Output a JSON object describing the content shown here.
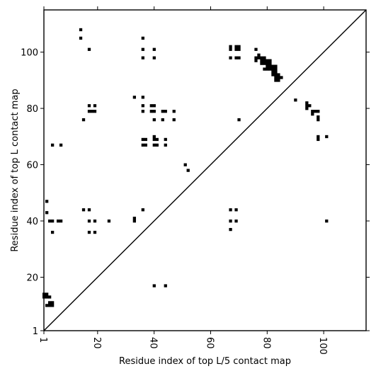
{
  "chart_data": {
    "type": "scatter",
    "title": "",
    "xlabel": "Residue index of top L/5 contact map",
    "ylabel": "Residue index of top L contact map",
    "xlim": [
      1,
      115
    ],
    "ylim": [
      1,
      115
    ],
    "xticks": [
      1,
      20,
      40,
      60,
      80,
      100
    ],
    "yticks": [
      1,
      20,
      40,
      60,
      80,
      100
    ],
    "xtick_labels": [
      "1",
      "20",
      "40",
      "60",
      "80",
      "100"
    ],
    "ytick_labels": [
      "1",
      "20",
      "40",
      "60",
      "80",
      "100"
    ],
    "diagonal": true,
    "marker_color": "#000000",
    "series": [
      {
        "values": [
          [
            14,
            108
          ],
          [
            14,
            105
          ],
          [
            17,
            101
          ],
          [
            36,
            105
          ],
          [
            36,
            101
          ],
          [
            36,
            98
          ],
          [
            40,
            101
          ],
          [
            40,
            98
          ],
          [
            67,
            102
          ],
          [
            67,
            101
          ],
          [
            67,
            98
          ],
          [
            69,
            102
          ],
          [
            69,
            101
          ],
          [
            70,
            102
          ],
          [
            70,
            101
          ],
          [
            69,
            98
          ],
          [
            70,
            98
          ],
          [
            76,
            101
          ],
          [
            76,
            98
          ],
          [
            76,
            97
          ],
          [
            77,
            99
          ],
          [
            77,
            98
          ],
          [
            78,
            98
          ],
          [
            78,
            97
          ],
          [
            78,
            96
          ],
          [
            79,
            98
          ],
          [
            79,
            97
          ],
          [
            79,
            96
          ],
          [
            80,
            97
          ],
          [
            80,
            96
          ],
          [
            80,
            95
          ],
          [
            80,
            94
          ],
          [
            81,
            97
          ],
          [
            81,
            96
          ],
          [
            81,
            95
          ],
          [
            81,
            94
          ],
          [
            82,
            95
          ],
          [
            82,
            94
          ],
          [
            82,
            93
          ],
          [
            82,
            92
          ],
          [
            83,
            95
          ],
          [
            83,
            94
          ],
          [
            83,
            93
          ],
          [
            83,
            92
          ],
          [
            83,
            91
          ],
          [
            83,
            90
          ],
          [
            84,
            92
          ],
          [
            84,
            91
          ],
          [
            84,
            90
          ],
          [
            85,
            91
          ],
          [
            79,
            94
          ],
          [
            33,
            84
          ],
          [
            36,
            84
          ],
          [
            17,
            81
          ],
          [
            19,
            81
          ],
          [
            36,
            81
          ],
          [
            39,
            81
          ],
          [
            40,
            81
          ],
          [
            17,
            79
          ],
          [
            18,
            79
          ],
          [
            19,
            79
          ],
          [
            36,
            79
          ],
          [
            39,
            79
          ],
          [
            40,
            79
          ],
          [
            43,
            79
          ],
          [
            44,
            79
          ],
          [
            47,
            79
          ],
          [
            15,
            76
          ],
          [
            40,
            76
          ],
          [
            43,
            76
          ],
          [
            47,
            76
          ],
          [
            70,
            76
          ],
          [
            36,
            69
          ],
          [
            37,
            69
          ],
          [
            40,
            70
          ],
          [
            40,
            69
          ],
          [
            41,
            69
          ],
          [
            44,
            69
          ],
          [
            36,
            67
          ],
          [
            37,
            67
          ],
          [
            40,
            67
          ],
          [
            41,
            67
          ],
          [
            44,
            67
          ],
          [
            4,
            67
          ],
          [
            7,
            67
          ],
          [
            51,
            60
          ],
          [
            52,
            58
          ],
          [
            90,
            83
          ],
          [
            94,
            82
          ],
          [
            94,
            81
          ],
          [
            94,
            80
          ],
          [
            95,
            81
          ],
          [
            96,
            79
          ],
          [
            96,
            78
          ],
          [
            97,
            79
          ],
          [
            98,
            79
          ],
          [
            98,
            77
          ],
          [
            98,
            76
          ],
          [
            98,
            70
          ],
          [
            98,
            69
          ],
          [
            101,
            70
          ],
          [
            101,
            40
          ],
          [
            2,
            47
          ],
          [
            2,
            43
          ],
          [
            15,
            44
          ],
          [
            17,
            44
          ],
          [
            36,
            44
          ],
          [
            67,
            44
          ],
          [
            69,
            44
          ],
          [
            3,
            40
          ],
          [
            4,
            40
          ],
          [
            6,
            40
          ],
          [
            7,
            40
          ],
          [
            17,
            40
          ],
          [
            19,
            40
          ],
          [
            24,
            40
          ],
          [
            33,
            41
          ],
          [
            33,
            40
          ],
          [
            67,
            40
          ],
          [
            69,
            40
          ],
          [
            4,
            36
          ],
          [
            17,
            36
          ],
          [
            19,
            36
          ],
          [
            67,
            37
          ],
          [
            40,
            17
          ],
          [
            44,
            17
          ],
          [
            1,
            14
          ],
          [
            1,
            13
          ],
          [
            2,
            14
          ],
          [
            2,
            13
          ],
          [
            3,
            13
          ],
          [
            2,
            10
          ],
          [
            3,
            11
          ],
          [
            3,
            10
          ],
          [
            4,
            11
          ],
          [
            4,
            10
          ]
        ]
      }
    ]
  }
}
